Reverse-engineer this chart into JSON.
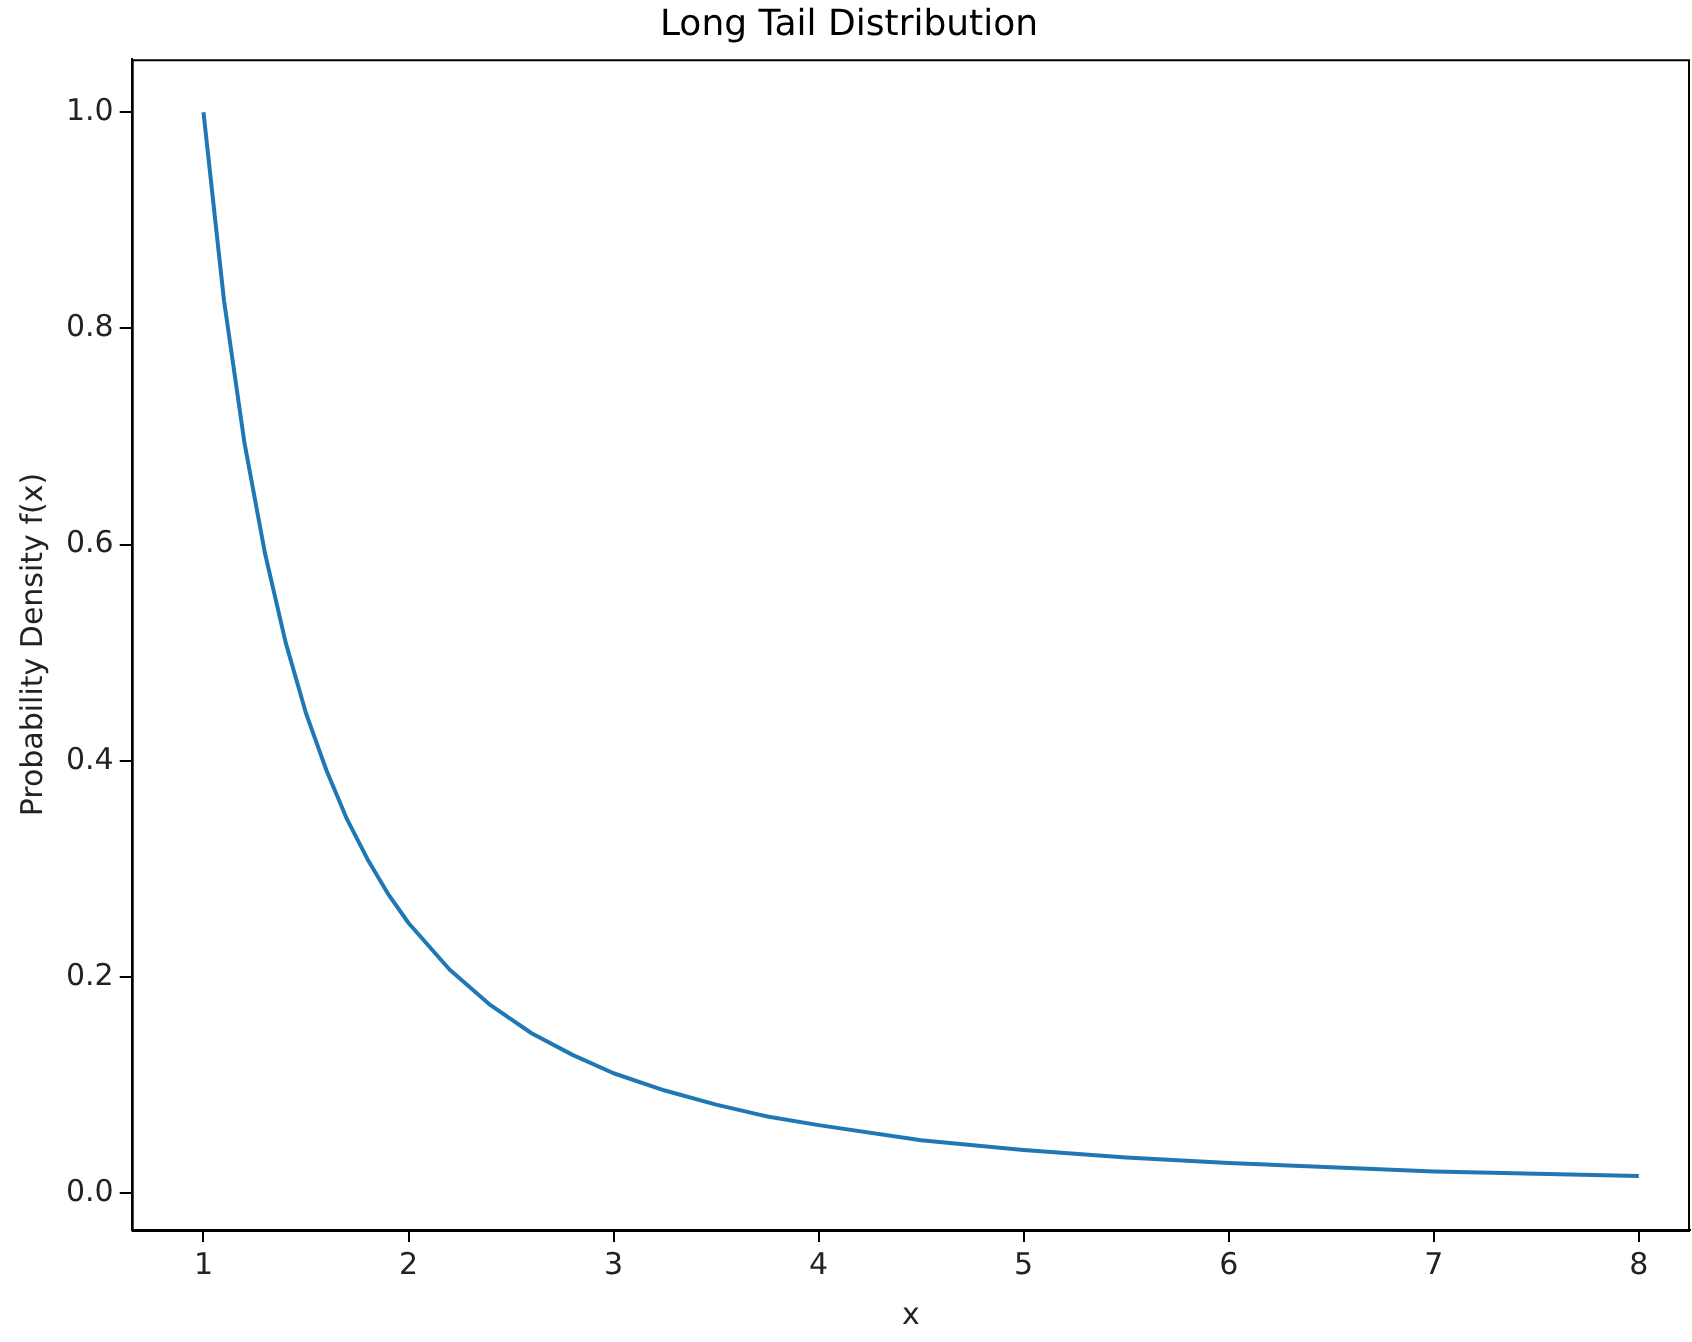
{
  "chart_data": {
    "type": "line",
    "title": "Long Tail Distribution",
    "xlabel": "x",
    "ylabel": "Probability Density f(x)",
    "x": [
      1,
      1.1,
      1.2,
      1.3,
      1.4,
      1.5,
      1.6,
      1.7,
      1.8,
      1.9,
      2,
      2.2,
      2.4,
      2.6,
      2.8,
      3,
      3.25,
      3.5,
      3.75,
      4,
      4.5,
      5,
      5.5,
      6,
      6.5,
      7,
      7.5,
      8
    ],
    "series": [
      {
        "color": "#1f77b4",
        "values": [
          1.0,
          0.826,
          0.694,
          0.592,
          0.51,
          0.444,
          0.391,
          0.346,
          0.309,
          0.277,
          0.25,
          0.207,
          0.174,
          0.148,
          0.128,
          0.111,
          0.095,
          0.082,
          0.071,
          0.063,
          0.049,
          0.04,
          0.033,
          0.028,
          0.024,
          0.02,
          0.018,
          0.016
        ]
      }
    ],
    "xlim": [
      0.65,
      8.25
    ],
    "ylim": [
      -0.034,
      1.049
    ],
    "xticks": [
      1,
      2,
      3,
      4,
      5,
      6,
      7,
      8
    ],
    "yticks": [
      {
        "value": 0,
        "label": "0.0"
      },
      {
        "value": 0.2,
        "label": "0.2"
      },
      {
        "value": 0.4,
        "label": "0.4"
      },
      {
        "value": 0.6,
        "label": "0.6"
      },
      {
        "value": 0.8,
        "label": "0.8"
      },
      {
        "value": 1,
        "label": "1.0"
      }
    ],
    "grid": false,
    "legend": false,
    "marker": "none",
    "line_style": "solid"
  }
}
